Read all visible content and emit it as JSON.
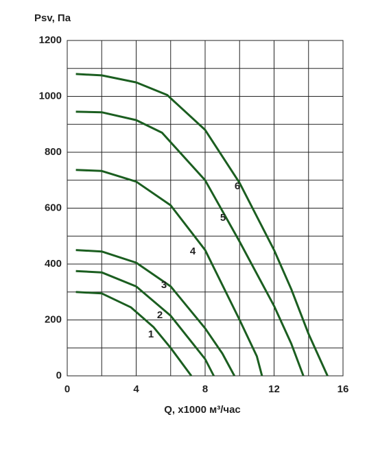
{
  "chart_data": {
    "type": "line",
    "ylabel": "Psv, Па",
    "xlabel": "Q, x1000 м³/час",
    "xlim": [
      0,
      16
    ],
    "xticks": [
      0,
      4,
      8,
      12,
      16
    ],
    "ylim": [
      0,
      1200
    ],
    "yticks": [
      0,
      200,
      400,
      600,
      800,
      1000,
      1200
    ],
    "grid": true,
    "series": [
      {
        "name": "1",
        "color": "#1b5e20",
        "x": [
          0.5,
          2,
          3.7,
          5,
          6,
          7.2
        ],
        "values": [
          300,
          295,
          245,
          175,
          100,
          0
        ]
      },
      {
        "name": "2",
        "color": "#1b5e20",
        "x": [
          0.5,
          2,
          4,
          6,
          8,
          8.5
        ],
        "values": [
          375,
          370,
          320,
          215,
          60,
          0
        ]
      },
      {
        "name": "3",
        "color": "#1b5e20",
        "x": [
          0.5,
          2,
          4,
          6,
          8,
          9,
          9.7
        ],
        "values": [
          450,
          445,
          405,
          320,
          170,
          80,
          0
        ]
      },
      {
        "name": "4",
        "color": "#1b5e20",
        "x": [
          0.5,
          2,
          4,
          6,
          8,
          10,
          11,
          11.3
        ],
        "values": [
          737,
          733,
          695,
          610,
          450,
          200,
          70,
          0
        ]
      },
      {
        "name": "5",
        "color": "#1b5e20",
        "x": [
          0.5,
          2,
          4,
          5.5,
          8,
          10,
          12,
          13,
          13.7
        ],
        "values": [
          945,
          943,
          915,
          870,
          700,
          480,
          250,
          115,
          0
        ]
      },
      {
        "name": "6",
        "color": "#1b5e20",
        "x": [
          0.5,
          2,
          4,
          5.8,
          8,
          10,
          12,
          13,
          14,
          15.1
        ],
        "values": [
          1080,
          1075,
          1050,
          1005,
          880,
          690,
          450,
          310,
          150,
          0
        ]
      }
    ]
  }
}
